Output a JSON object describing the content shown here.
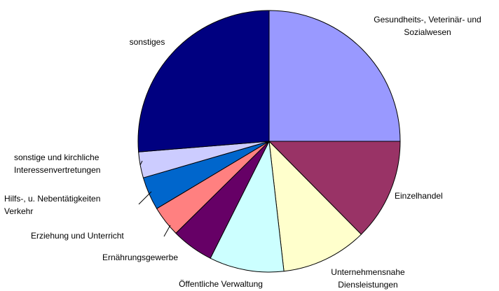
{
  "chart_data": {
    "type": "pie",
    "categories": [
      "Gesundheits-, Veterinär- und Sozialwesen",
      "Einzelhandel",
      "Unternehmensnahe Diensleistungen",
      "Öffentliche Verwaltung",
      "Ernährungsgewerbe",
      "Erziehung und Unterricht",
      "Hilfs-, u. Nebentätigkeiten Verkehr",
      "sonstige und kirchliche Interessenvertretungen",
      "sonstiges"
    ],
    "values": [
      25,
      12.6,
      10.6,
      9.2,
      5.2,
      3.8,
      4.1,
      3.2,
      26.3
    ],
    "colors": [
      "#9999ff",
      "#993366",
      "#ffffcc",
      "#ccffff",
      "#660066",
      "#ff8080",
      "#0066cc",
      "#ccccff",
      "#000080"
    ]
  }
}
